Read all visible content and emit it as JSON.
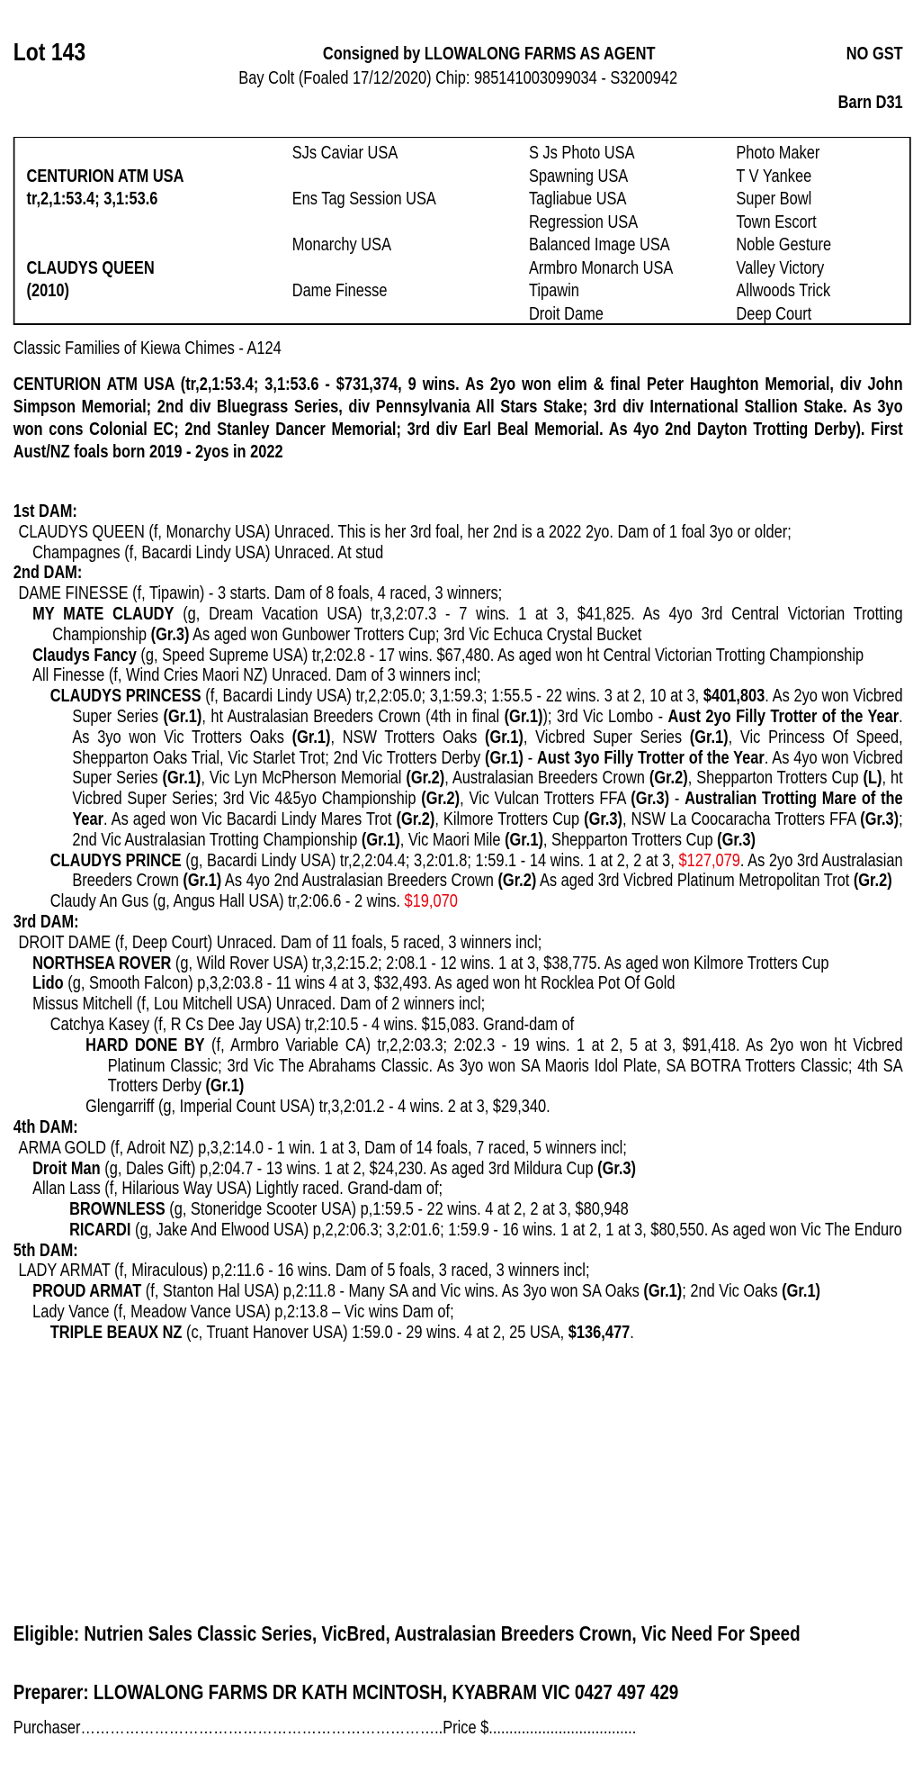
{
  "header": {
    "lot": "Lot 143",
    "consigned": "Consigned by LLOWALONG FARMS AS AGENT",
    "gst": "NO GST",
    "subtitle": "Bay Colt (Foaled 17/12/2020) Chip: 985141003099034 - S3200942",
    "barn": "Barn D31"
  },
  "pedigree": {
    "rows": [
      [
        "",
        "SJs Caviar USA",
        "S Js Photo USA",
        "Photo Maker"
      ],
      [
        "CENTURION ATM USA",
        "",
        "Spawning USA",
        "T V Yankee"
      ],
      [
        "tr,2,1:53.4; 3,1:53.6",
        "Ens Tag Session USA",
        "Tagliabue USA",
        "Super Bowl"
      ],
      [
        "",
        "",
        "Regression USA",
        "Town Escort"
      ],
      [
        "",
        "Monarchy USA",
        "Balanced Image USA",
        "Noble Gesture"
      ],
      [
        "CLAUDYS QUEEN",
        "",
        "Armbro Monarch USA",
        "Valley Victory"
      ],
      [
        "(2010)",
        "Dame Finesse",
        "Tipawin",
        "Allwoods Trick"
      ],
      [
        "",
        "",
        "Droit Dame",
        "Deep Court"
      ]
    ]
  },
  "family": "Classic Families of Kiewa Chimes - A124",
  "sire_summary": "CENTURION ATM USA (tr,2,1:53.4; 3,1:53.6 - $731,374, 9 wins. As 2yo won elim & final Peter Haughton Memorial, div John Simpson Memorial; 2nd div Bluegrass Series, div Pennsylvania All Stars Stake; 3rd div International Stallion Stake. As 3yo won cons Colonial EC; 2nd Stanley Dancer Memorial; 3rd div Earl Beal Memorial. As 4yo 2nd Dayton Trotting Derby). First Aust/NZ foals born 2019 - 2yos in 2022",
  "colors": {
    "highlight": "#e8000b"
  },
  "sections": [
    {
      "heading": "1st DAM:",
      "entries": [
        {
          "level": "l0",
          "segments": [
            {
              "t": "CLAUDYS QUEEN (f, Monarchy USA) Unraced. This is her 3rd foal, her 2nd is a 2022 2yo. Dam of 1 foal 3yo or older;"
            }
          ]
        },
        {
          "level": "l1",
          "segments": [
            {
              "t": "Champagnes (f, Bacardi Lindy USA) Unraced. At stud"
            }
          ]
        }
      ]
    },
    {
      "heading": "2nd DAM:",
      "entries": [
        {
          "level": "l0",
          "segments": [
            {
              "t": "DAME FINESSE (f, Tipawin) - 3 starts. Dam of 8 foals, 4 raced, 3 winners;"
            }
          ]
        },
        {
          "level": "l1",
          "segments": [
            {
              "t": "MY MATE CLAUDY",
              "s": "b"
            },
            {
              "t": " (g, Dream Vacation USA) tr,3,2:07.3 - 7 wins. 1 at 3, $41,825. As 4yo 3rd Central Victorian Trotting Championship "
            },
            {
              "t": "(Gr.3)",
              "s": "b"
            },
            {
              "t": " As aged won Gunbower Trotters Cup; 3rd Vic Echuca Crystal Bucket"
            }
          ]
        },
        {
          "level": "l1",
          "segments": [
            {
              "t": "Claudys Fancy",
              "s": "b"
            },
            {
              "t": " (g, Speed Supreme USA) tr,2:02.8 - 17 wins. $67,480. As aged won ht Central Victorian Trotting Championship"
            }
          ]
        },
        {
          "level": "l1",
          "segments": [
            {
              "t": "All Finesse (f, Wind Cries Maori NZ) Unraced. Dam of 3 winners incl;"
            }
          ]
        },
        {
          "level": "l2",
          "segments": [
            {
              "t": "CLAUDYS PRINCESS",
              "s": "b"
            },
            {
              "t": " (f, Bacardi Lindy USA) tr,2,2:05.0; 3,1:59.3; 1:55.5 - 22 wins. 3 at 2, 10 at 3, "
            },
            {
              "t": "$401,803",
              "s": "b"
            },
            {
              "t": ". As 2yo won Vicbred Super Series "
            },
            {
              "t": "(Gr.1)",
              "s": "b"
            },
            {
              "t": ", ht Australasian Breeders Crown (4th in final "
            },
            {
              "t": "(Gr.1)",
              "s": "b"
            },
            {
              "t": "); 3rd Vic Lombo - "
            },
            {
              "t": "Aust 2yo Filly Trotter of the Year",
              "s": "b"
            },
            {
              "t": ". As 3yo won Vic Trotters Oaks "
            },
            {
              "t": "(Gr.1)",
              "s": "b"
            },
            {
              "t": ", NSW Trotters Oaks "
            },
            {
              "t": "(Gr.1)",
              "s": "b"
            },
            {
              "t": ", Vicbred Super Series "
            },
            {
              "t": "(Gr.1)",
              "s": "b"
            },
            {
              "t": ", Vic Princess Of Speed, Shepparton Oaks Trial, Vic Starlet Trot; 2nd Vic Trotters Derby "
            },
            {
              "t": "(Gr.1)",
              "s": "b"
            },
            {
              "t": " - "
            },
            {
              "t": "Aust 3yo Filly Trotter of the Year",
              "s": "b"
            },
            {
              "t": ". As 4yo won Vicbred Super Series "
            },
            {
              "t": "(Gr.1)",
              "s": "b"
            },
            {
              "t": ", Vic Lyn McPherson Memorial "
            },
            {
              "t": "(Gr.2)",
              "s": "b"
            },
            {
              "t": ", Australasian Breeders Crown "
            },
            {
              "t": "(Gr.2)",
              "s": "b"
            },
            {
              "t": ", Shepparton Trotters Cup "
            },
            {
              "t": "(L)",
              "s": "b"
            },
            {
              "t": ", ht Vicbred Super Series; 3rd Vic 4&5yo Championship "
            },
            {
              "t": "(Gr.2)",
              "s": "b"
            },
            {
              "t": ", Vic Vulcan Trotters FFA "
            },
            {
              "t": "(Gr.3)",
              "s": "b"
            },
            {
              "t": " - "
            },
            {
              "t": "Australian Trotting Mare of the Year",
              "s": "b"
            },
            {
              "t": ". As aged won Vic Bacardi Lindy Mares Trot "
            },
            {
              "t": "(Gr.2)",
              "s": "b"
            },
            {
              "t": ", Kilmore Trotters Cup "
            },
            {
              "t": "(Gr.3)",
              "s": "b"
            },
            {
              "t": ", NSW La Coocaracha Trotters FFA "
            },
            {
              "t": "(Gr.3)",
              "s": "b"
            },
            {
              "t": "; 2nd Vic Australasian Trotting Championship "
            },
            {
              "t": "(Gr.1)",
              "s": "b"
            },
            {
              "t": ", Vic Maori Mile "
            },
            {
              "t": "(Gr.1)",
              "s": "b"
            },
            {
              "t": ", Shepparton Trotters Cup "
            },
            {
              "t": "(Gr.3)",
              "s": "b"
            }
          ]
        },
        {
          "level": "l2",
          "segments": [
            {
              "t": "CLAUDYS PRINCE",
              "s": "b"
            },
            {
              "t": " (g, Bacardi Lindy USA) tr,2,2:04.4; 3,2:01.8; 1:59.1 - 14 wins. 1 at 2, 2 at 3, "
            },
            {
              "t": "$127,079",
              "s": "r"
            },
            {
              "t": ". As 2yo 3rd Australasian Breeders Crown "
            },
            {
              "t": "(Gr.1)",
              "s": "b"
            },
            {
              "t": " As 4yo 2nd Australasian Breeders Crown "
            },
            {
              "t": "(Gr.2)",
              "s": "b"
            },
            {
              "t": " As aged 3rd Vicbred Platinum Metropolitan Trot "
            },
            {
              "t": "(Gr.2)",
              "s": "b"
            }
          ]
        },
        {
          "level": "l2",
          "segments": [
            {
              "t": "Claudy An Gus (g, Angus Hall USA) tr,2:06.6 - 2 wins. "
            },
            {
              "t": "$19,070",
              "s": "r"
            }
          ]
        }
      ]
    },
    {
      "heading": "3rd DAM:",
      "entries": [
        {
          "level": "l0",
          "segments": [
            {
              "t": "DROIT DAME (f, Deep Court) Unraced. Dam of 11 foals, 5 raced, 3 winners incl;"
            }
          ]
        },
        {
          "level": "l1",
          "segments": [
            {
              "t": "NORTHSEA ROVER",
              "s": "b"
            },
            {
              "t": " (g, Wild Rover USA) tr,3,2:15.2; 2:08.1 - 12 wins. 1 at 3, $38,775. As aged won Kilmore Trotters Cup"
            }
          ]
        },
        {
          "level": "l1",
          "segments": [
            {
              "t": "Lido",
              "s": "b"
            },
            {
              "t": " (g, Smooth Falcon) p,3,2:03.8 - 11 wins 4 at 3, $32,493. As aged won ht Rocklea Pot Of Gold"
            }
          ]
        },
        {
          "level": "l1",
          "segments": [
            {
              "t": "Missus Mitchell (f, Lou Mitchell USA) Unraced. Dam of 2 winners incl;"
            }
          ]
        },
        {
          "level": "l2",
          "segments": [
            {
              "t": "Catchya Kasey (f, R Cs Dee Jay USA) tr,2:10.5 - 4 wins. $15,083. Grand-dam of"
            }
          ]
        },
        {
          "level": "l3",
          "segments": [
            {
              "t": "HARD DONE BY",
              "s": "b"
            },
            {
              "t": " (f, Armbro Variable CA) tr,2,2:03.3; 2:02.3 - 19 wins. 1 at 2, 5 at 3, $91,418. As 2yo won ht Vicbred Platinum Classic; 3rd Vic The Abrahams Classic. As 3yo won SA Maoris Idol Plate, SA BOTRA Trotters Classic; 4th SA Trotters Derby "
            },
            {
              "t": "(Gr.1)",
              "s": "b"
            }
          ]
        },
        {
          "level": "l3",
          "segments": [
            {
              "t": "Glengarriff (g, Imperial Count USA) tr,3,2:01.2 - 4 wins. 2 at 3, $29,340."
            }
          ]
        }
      ]
    },
    {
      "heading": "4th DAM:",
      "entries": [
        {
          "level": "l0",
          "segments": [
            {
              "t": "ARMA GOLD (f, Adroit NZ) p,3,2:14.0 - 1 win. 1 at 3, Dam of 14 foals, 7 raced, 5 winners incl;"
            }
          ]
        },
        {
          "level": "l1",
          "segments": [
            {
              "t": "Droit Man",
              "s": "b"
            },
            {
              "t": " (g, Dales Gift) p,2:04.7 - 13 wins. 1 at 2, $24,230. As aged 3rd Mildura Cup "
            },
            {
              "t": "(Gr.3)",
              "s": "b"
            }
          ]
        },
        {
          "level": "l1",
          "segments": [
            {
              "t": "Allan Lass (f, Hilarious Way USA) Lightly raced. Grand-dam of;"
            }
          ]
        },
        {
          "level": "lb",
          "segments": [
            {
              "t": "BROWNLESS",
              "s": "b"
            },
            {
              "t": " (g, Stoneridge Scooter USA) p,1:59.5 - 22 wins. 4 at 2, 2 at 3, $80,948"
            }
          ]
        },
        {
          "level": "lb",
          "segments": [
            {
              "t": "RICARDI",
              "s": "b"
            },
            {
              "t": " (g, Jake And Elwood USA) p,2,2:06.3; 3,2:01.6; 1:59.9 - 16 wins. 1 at 2, 1 at 3, $80,550. As aged won Vic The Enduro"
            }
          ]
        }
      ]
    },
    {
      "heading": "5th DAM:",
      "entries": [
        {
          "level": "l0",
          "segments": [
            {
              "t": "LADY ARMAT (f, Miraculous) p,2:11.6 - 16 wins. Dam of 5 foals, 3 raced, 3 winners incl;"
            }
          ]
        },
        {
          "level": "l1",
          "segments": [
            {
              "t": "PROUD ARMAT",
              "s": "b"
            },
            {
              "t": " (f, Stanton Hal USA) p,2:11.8 - Many SA and Vic wins. As 3yo won SA Oaks "
            },
            {
              "t": "(Gr.1)",
              "s": "b"
            },
            {
              "t": "; 2nd Vic Oaks "
            },
            {
              "t": "(Gr.1)",
              "s": "b"
            }
          ]
        },
        {
          "level": "l1",
          "segments": [
            {
              "t": "Lady Vance (f, Meadow Vance USA) p,2:13.8 – Vic wins Dam of;"
            }
          ]
        },
        {
          "level": "l2",
          "segments": [
            {
              "t": "TRIPLE BEAUX NZ",
              "s": "b"
            },
            {
              "t": " (c, Truant Hanover USA) 1:59.0 - 29 wins. 4 at 2, 25 USA, "
            },
            {
              "t": "$136,477",
              "s": "b"
            },
            {
              "t": "."
            }
          ]
        }
      ]
    }
  ],
  "eligible": "Eligible: Nutrien Sales Classic Series, VicBred, Australasian Breeders Crown, Vic Need For Speed",
  "preparer": "Preparer: LLOWALONG FARMS DR KATH MCINTOSH, KYABRAM VIC 0427 497 429",
  "purchaser_line": "Purchaser………………………………………………………………..Price $...................................."
}
